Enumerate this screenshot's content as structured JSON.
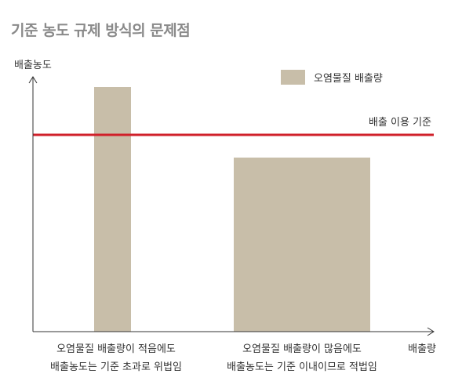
{
  "title": "기준 농도 규제 방식의 문제점",
  "chart_data": {
    "type": "bar",
    "ylabel": "배출농도",
    "xlabel": "배출량",
    "legend": {
      "label": "오염물질 배출량",
      "color": "#c8bea9",
      "position": "top-right"
    },
    "threshold": {
      "label": "배출 이용 기준",
      "color": "#d0202a"
    },
    "bars": [
      {
        "caption_line1": "오염물질 배출량이 적음에도",
        "caption_line2": "배출농도는 기준 초과로 위법임"
      },
      {
        "caption_line1": "오염물질 배출량이 많음에도",
        "caption_line2": "배출농도는 기준 이내이므로 적법임"
      }
    ]
  }
}
